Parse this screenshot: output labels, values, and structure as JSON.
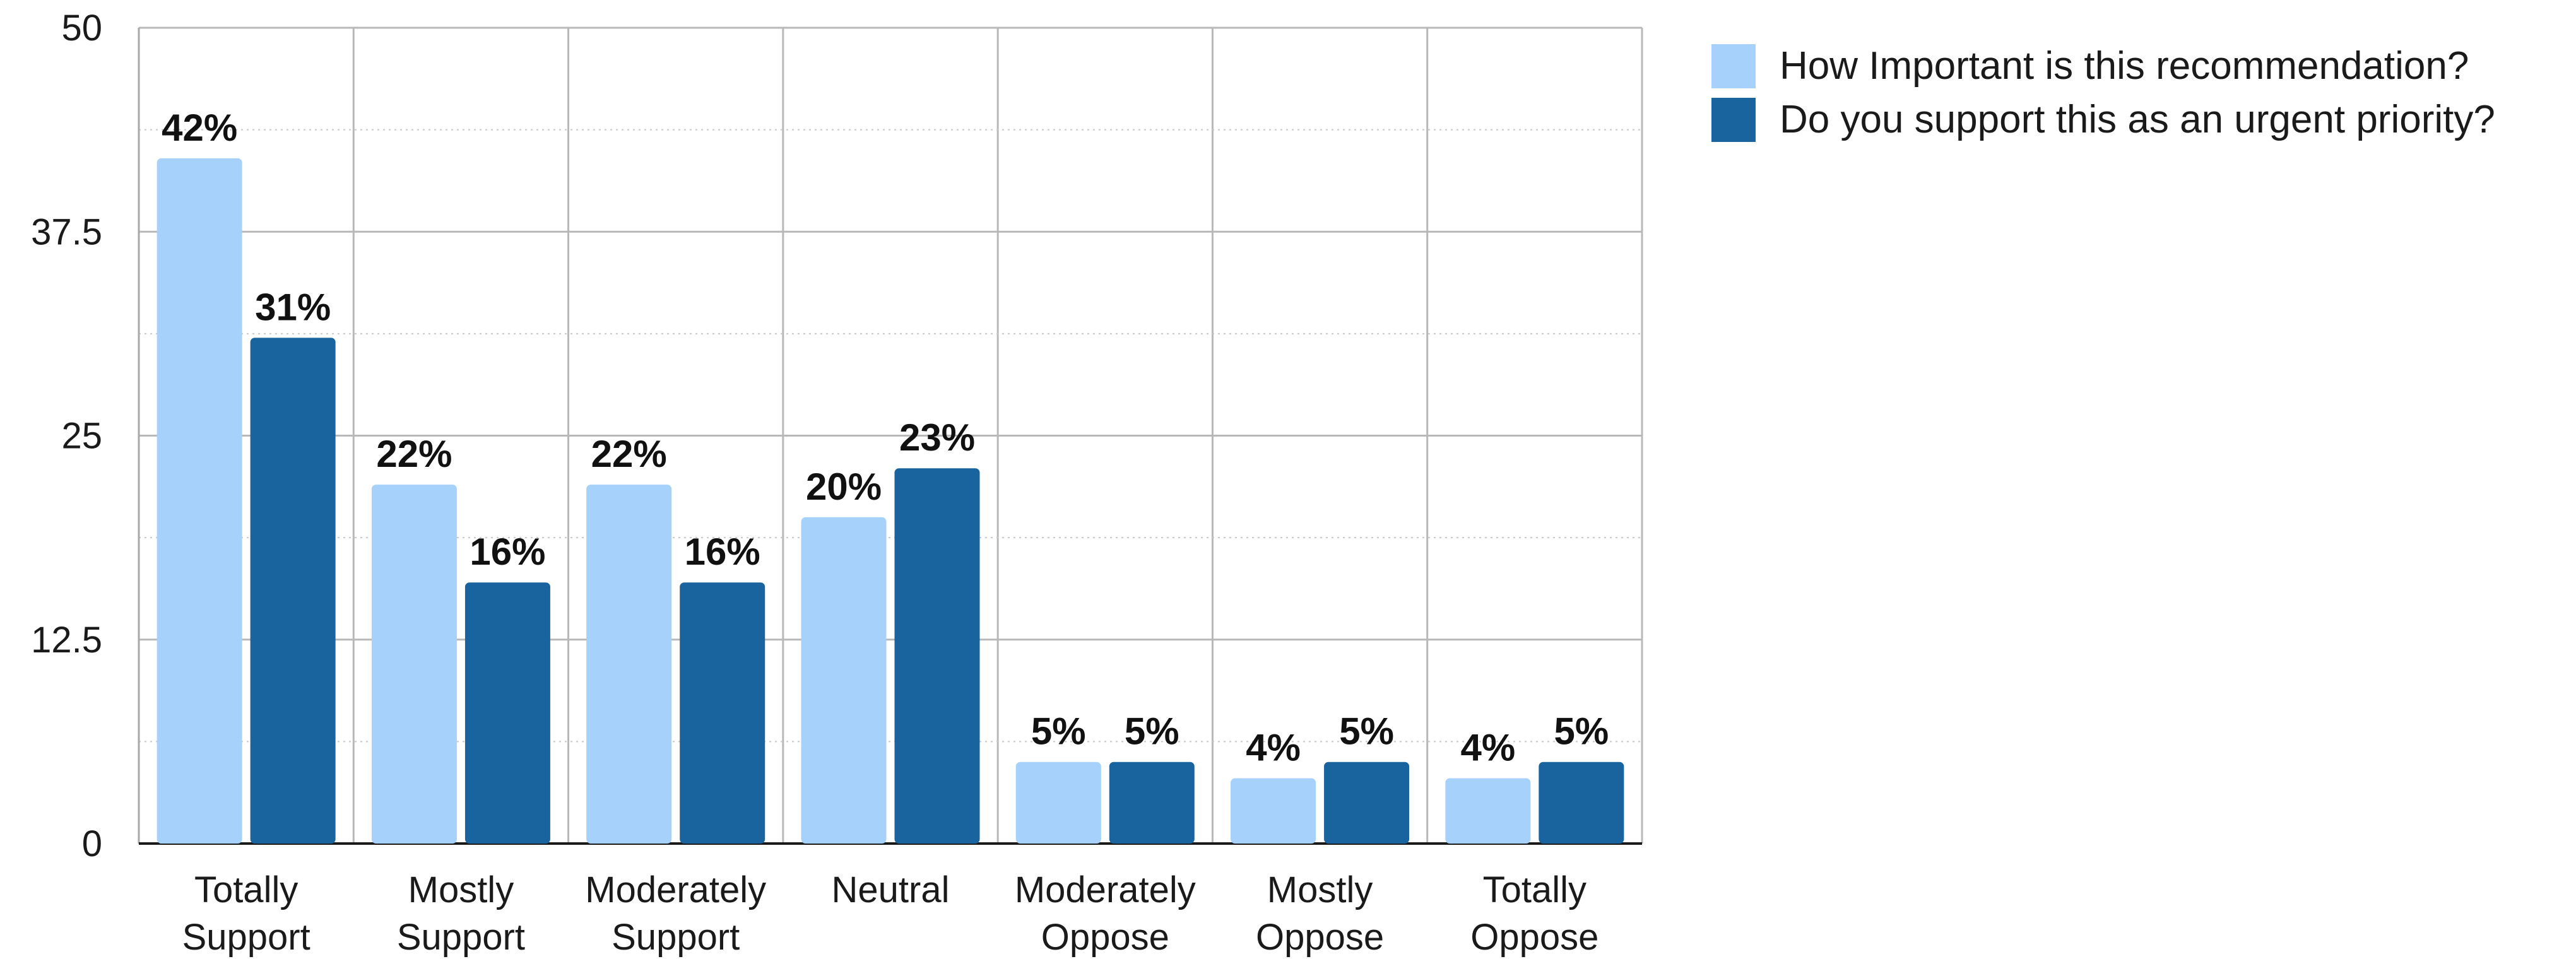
{
  "chart_data": {
    "type": "bar",
    "categories": [
      [
        "Totally",
        "Support"
      ],
      [
        "Mostly",
        "Support"
      ],
      [
        "Moderately",
        "Support"
      ],
      [
        "Neutral"
      ],
      [
        "Moderately",
        "Oppose"
      ],
      [
        "Mostly",
        "Oppose"
      ],
      [
        "Totally",
        "Oppose"
      ]
    ],
    "series": [
      {
        "name": "How Important is this recommendation?",
        "color": "#a6d1fb",
        "values": [
          42,
          22,
          22,
          20,
          5,
          4,
          4
        ],
        "labels": [
          "42%",
          "22%",
          "22%",
          "20%",
          "5%",
          "4%",
          "4%"
        ]
      },
      {
        "name": "Do you support this as an urgent priority?",
        "color": "#19649f",
        "values": [
          31,
          16,
          16,
          23,
          5,
          5,
          5
        ],
        "labels": [
          "31%",
          "16%",
          "16%",
          "23%",
          "5%",
          "5%",
          "5%"
        ]
      }
    ],
    "yticks": [
      "0",
      "12.5",
      "25",
      "37.5",
      "50"
    ],
    "ylim": [
      0,
      50
    ],
    "grid": true,
    "legend": "top-right"
  }
}
